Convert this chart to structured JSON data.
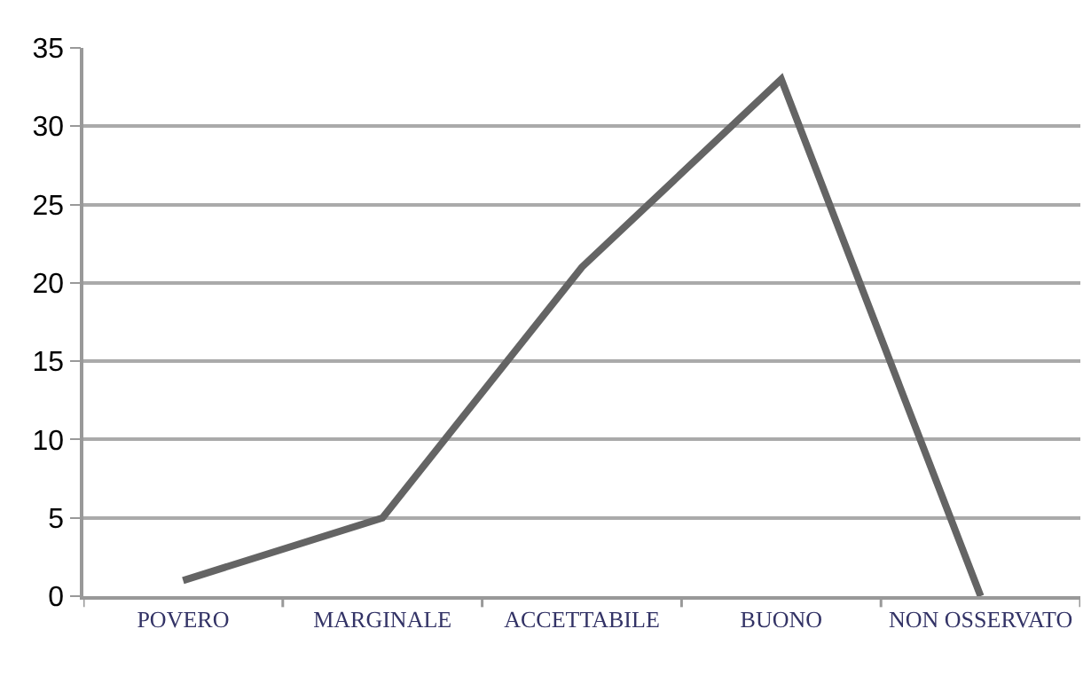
{
  "chart_data": {
    "type": "line",
    "categories": [
      "POVERO",
      "MARGINALE",
      "ACCETTABILE",
      "BUONO",
      "NON OSSERVATO"
    ],
    "series": [
      {
        "color": "#646464",
        "values": [
          1,
          5,
          21,
          33,
          0
        ]
      }
    ],
    "ylim": [
      0,
      35
    ],
    "yticks": [
      0,
      5,
      10,
      15,
      20,
      25,
      30,
      35
    ],
    "grid": "y",
    "legend": false,
    "marker": "none",
    "line_style": "solid"
  }
}
